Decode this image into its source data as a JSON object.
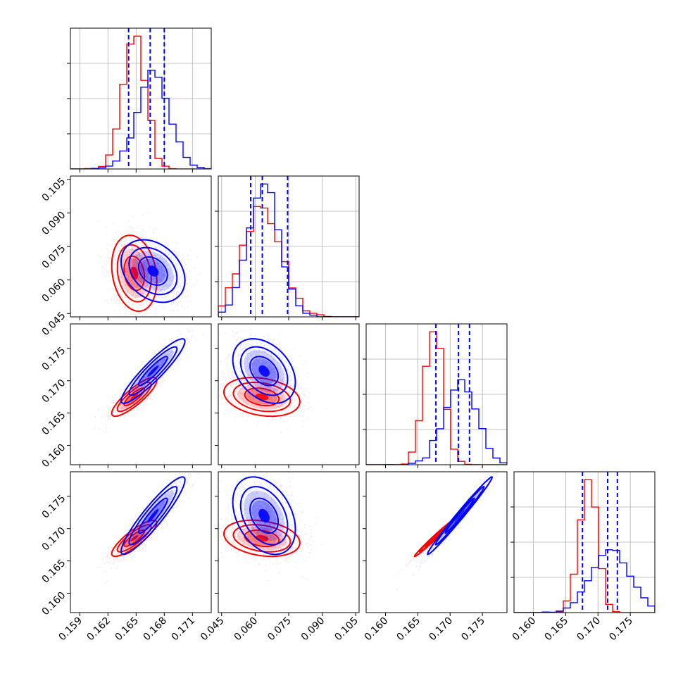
{
  "chart_data": {
    "type": "corner",
    "title": "",
    "parameters": [
      {
        "range": [
          0.158,
          0.173
        ],
        "ticks": [
          "0.159",
          "0.162",
          "0.165",
          "0.168",
          "0.171"
        ],
        "tick_values": [
          0.159,
          0.162,
          0.165,
          0.168,
          0.171
        ]
      },
      {
        "range": [
          0.0435,
          0.1065
        ],
        "ticks": [
          "0.045",
          "0.060",
          "0.075",
          "0.090",
          "0.105"
        ],
        "tick_values": [
          0.045,
          0.06,
          0.075,
          0.09,
          0.105
        ]
      },
      {
        "range": [
          0.157,
          0.1788
        ],
        "ticks": [
          "0.160",
          "0.165",
          "0.170",
          "0.175"
        ],
        "tick_values": [
          0.16,
          0.165,
          0.17,
          0.175
        ]
      },
      {
        "range": [
          0.157,
          0.1788
        ],
        "ticks": [
          "0.160",
          "0.165",
          "0.170",
          "0.175"
        ],
        "tick_values": [
          0.16,
          0.165,
          0.17,
          0.175
        ]
      }
    ],
    "series": [
      {
        "color": "#ff0000",
        "mean": [
          0.1648,
          0.063,
          0.1675,
          0.1685
        ],
        "sd": [
          0.0012,
          0.0085,
          0.0015,
          0.0014
        ],
        "corr": [
          [
            1,
            -0.2,
            0.85,
            0.85
          ],
          [
            -0.2,
            1,
            -0.25,
            -0.25
          ],
          [
            0.85,
            -0.25,
            1,
            0.99
          ],
          [
            0.85,
            -0.25,
            0.99,
            1
          ]
        ]
      },
      {
        "color": "#0000ff",
        "mean": [
          0.1668,
          0.064,
          0.1715,
          0.172
        ],
        "sd": [
          0.0017,
          0.007,
          0.0025,
          0.003
        ],
        "corr": [
          [
            1,
            -0.3,
            0.92,
            0.92
          ],
          [
            -0.3,
            1,
            -0.35,
            -0.35
          ],
          [
            0.92,
            -0.35,
            1,
            0.99
          ],
          [
            0.92,
            -0.35,
            0.99,
            1
          ]
        ]
      }
    ],
    "quantile_lines": [
      [
        0.1642,
        0.1665,
        0.168
      ],
      [
        0.058,
        0.0632,
        0.0745
      ],
      [
        0.1678,
        0.1713,
        0.173
      ],
      [
        0.1676,
        0.1715,
        0.173
      ]
    ],
    "quantile_line_color": "#0000ff",
    "grid": true,
    "legend": "none"
  }
}
